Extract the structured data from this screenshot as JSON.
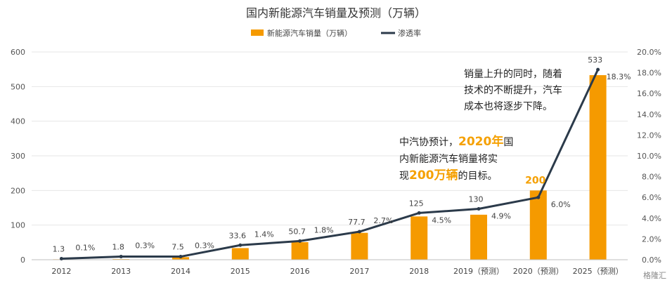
{
  "chart_data": {
    "type": "bar",
    "title": "国内新能源汽车销量及预测（万辆）",
    "categories": [
      "2012",
      "2013",
      "2014",
      "2015",
      "2016",
      "2017",
      "2018",
      "2019（预测）",
      "2020（预测）",
      "2025（预测）"
    ],
    "series": [
      {
        "name": "新能源汽车销量（万辆）",
        "type": "bar",
        "axis": "left",
        "color": "#f59a00",
        "values": [
          1.3,
          1.8,
          7.5,
          33.6,
          50.7,
          77.7,
          125,
          130,
          200,
          533
        ],
        "labels": [
          "1.3",
          "1.8",
          "7.5",
          "33.6",
          "50.7",
          "77.7",
          "125",
          "130",
          "200",
          "533"
        ]
      },
      {
        "name": "渗透率",
        "type": "line",
        "axis": "right",
        "color": "#2b3a4a",
        "values": [
          0.1,
          0.3,
          0.3,
          1.4,
          1.8,
          2.7,
          4.5,
          4.9,
          6.0,
          18.3
        ],
        "labels": [
          "0.1%",
          "0.3%",
          "0.3%",
          "1.4%",
          "1.8%",
          "2.7%",
          "4.5%",
          "4.9%",
          "6.0%",
          "18.3%"
        ]
      }
    ],
    "y_left": {
      "min": 0,
      "max": 600,
      "ticks": [
        "0",
        "100",
        "200",
        "300",
        "400",
        "500",
        "600"
      ]
    },
    "y_right": {
      "min": 0,
      "max": 20,
      "ticks": [
        "0.0%",
        "2.0%",
        "4.0%",
        "6.0%",
        "8.0%",
        "10.0%",
        "12.0%",
        "14.0%",
        "16.0%",
        "18.0%",
        "20.0%"
      ]
    },
    "grid": true,
    "legend_position": "top"
  },
  "annotations": {
    "note1": [
      "中汽协预计，",
      "2020年",
      "国",
      "内新能源汽车销量将实",
      "现",
      "200万辆",
      "的目标。"
    ],
    "note2": [
      "销量上升的同时，随着",
      "技术的不断提升，汽车",
      "成本也将逐步下降。"
    ]
  },
  "watermark": "格隆汇"
}
